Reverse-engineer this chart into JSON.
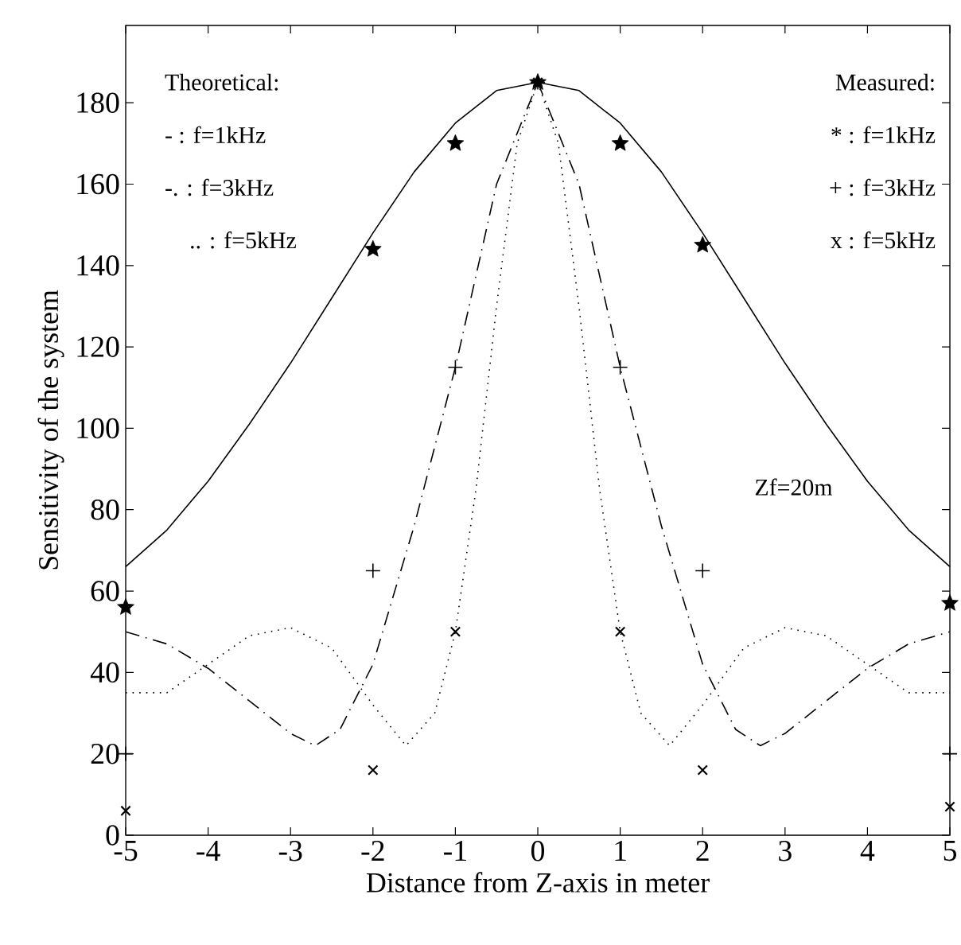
{
  "chart_data": {
    "type": "line",
    "xlabel": "Distance from Z-axis in meter",
    "ylabel": "Sensitivity of the system",
    "xlim": [
      -5,
      5
    ],
    "ylim": [
      0,
      199
    ],
    "xticks": [
      -5,
      -4,
      -3,
      -2,
      -1,
      0,
      1,
      2,
      3,
      4,
      5
    ],
    "yticks": [
      0,
      20,
      40,
      60,
      80,
      100,
      120,
      140,
      160,
      180
    ],
    "grid": false,
    "annotations": [
      "Theoretical:",
      "- : f=1kHz",
      "-. : f=3kHz",
      ".. : f=5kHz",
      "Measured:",
      "* : f=1kHz",
      "+ : f=3kHz",
      "x : f=5kHz",
      "Zf=20m"
    ],
    "series": [
      {
        "color": "#000000",
        "line_style": "solid",
        "marker": "none",
        "x": [
          -5,
          -4.5,
          -4,
          -3.5,
          -3,
          -2.5,
          -2,
          -1.5,
          -1,
          -0.5,
          0,
          0.5,
          1,
          1.5,
          2,
          2.5,
          3,
          3.5,
          4,
          4.5,
          5
        ],
        "values": [
          66,
          75,
          87,
          101,
          116,
          132,
          148,
          163,
          175,
          183,
          185,
          183,
          175,
          163,
          148,
          132,
          116,
          101,
          87,
          75,
          66
        ]
      },
      {
        "color": "#000000",
        "line_style": "dashdot",
        "marker": "none",
        "x": [
          -5,
          -4.5,
          -4,
          -3.5,
          -3,
          -2.7,
          -2.4,
          -2,
          -1.5,
          -1,
          -0.5,
          0,
          0.5,
          1,
          1.5,
          2,
          2.4,
          2.7,
          3,
          3.5,
          4,
          4.5,
          5
        ],
        "values": [
          50,
          47,
          41,
          33,
          25,
          22,
          26,
          42,
          76,
          115,
          160,
          185,
          160,
          115,
          76,
          42,
          26,
          22,
          25,
          33,
          41,
          47,
          50
        ]
      },
      {
        "color": "#000000",
        "line_style": "dotted",
        "marker": "none",
        "x": [
          -5,
          -4.5,
          -4,
          -3.5,
          -3,
          -2.5,
          -2,
          -1.6,
          -1.25,
          -1,
          -0.75,
          -0.5,
          -0.25,
          0,
          0.25,
          0.5,
          0.75,
          1,
          1.25,
          1.6,
          2,
          2.5,
          3,
          3.5,
          4,
          4.5,
          5
        ],
        "values": [
          35,
          35,
          42,
          49,
          51,
          46,
          32,
          22,
          30,
          50,
          85,
          130,
          170,
          185,
          170,
          130,
          85,
          50,
          30,
          22,
          32,
          46,
          51,
          49,
          42,
          35,
          35
        ]
      },
      {
        "type": "scatter",
        "color": "#000000",
        "marker": "star",
        "x": [
          -5,
          -2,
          -1,
          0,
          1,
          2,
          5
        ],
        "values": [
          56,
          144,
          170,
          185,
          170,
          145,
          57
        ]
      },
      {
        "type": "scatter",
        "color": "#000000",
        "marker": "plus",
        "x": [
          -5,
          -2,
          -1,
          0,
          1,
          2,
          5
        ],
        "values": [
          20,
          65,
          115,
          185,
          115,
          65,
          20
        ]
      },
      {
        "type": "scatter",
        "color": "#000000",
        "marker": "cross",
        "x": [
          -5,
          -2,
          -1,
          0,
          1,
          2,
          5
        ],
        "values": [
          6,
          16,
          50,
          185,
          50,
          16,
          7
        ]
      }
    ]
  }
}
